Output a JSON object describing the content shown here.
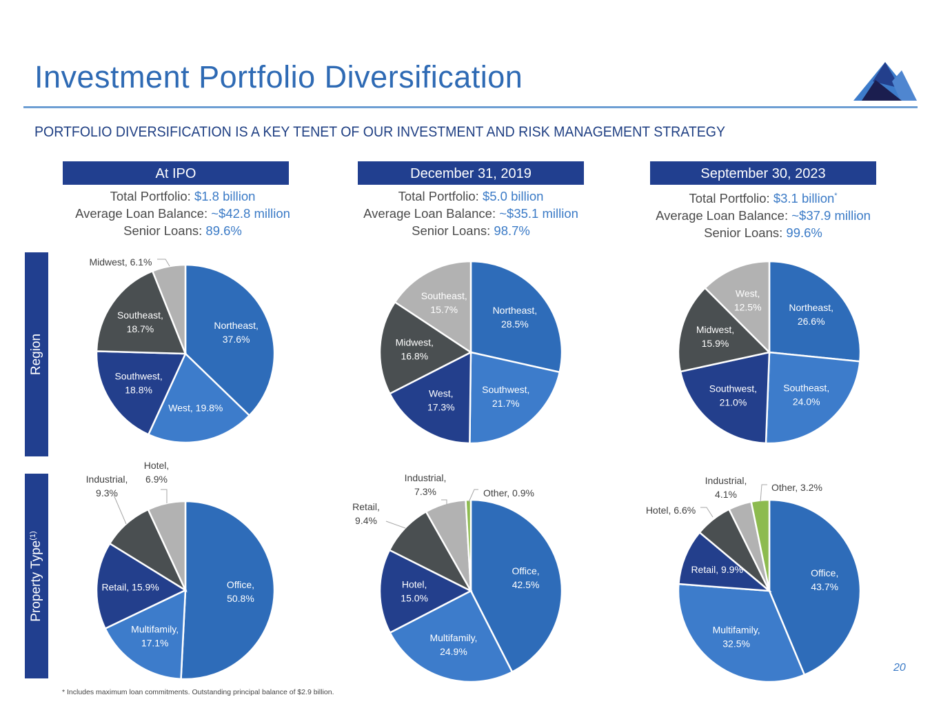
{
  "header": {
    "title": "Investment Portfolio Diversification",
    "subtitle": "PORTFOLIO DIVERSIFICATION IS A KEY TENET OF OUR INVESTMENT AND RISK MANAGEMENT STRATEGY",
    "logo_icon": "mountain-logo-icon"
  },
  "columns": [
    {
      "heading": "At IPO",
      "total_label": "Total Portfolio: ",
      "total_value": "$1.8 billion",
      "total_note": "",
      "avg_label": "Average Loan Balance: ",
      "avg_value": "~$42.8 million",
      "senior_label": "Senior Loans: ",
      "senior_value": "89.6%"
    },
    {
      "heading": "December 31, 2019",
      "total_label": "Total Portfolio: ",
      "total_value": "$5.0 billion",
      "total_note": "",
      "avg_label": "Average Loan Balance: ",
      "avg_value": "~$35.1 million",
      "senior_label": "Senior Loans: ",
      "senior_value": "98.7%"
    },
    {
      "heading": "September 30, 2023",
      "total_label": "Total Portfolio: ",
      "total_value": "$3.1 billion",
      "total_note": "*",
      "avg_label": "Average Loan Balance: ",
      "avg_value": "~$37.9 million",
      "senior_label": "Senior Loans: ",
      "senior_value": "99.6%"
    }
  ],
  "row_labels": {
    "region": "Region",
    "property": "Property Type",
    "property_note": "(1)"
  },
  "colors": {
    "blue": "#2e6cb9",
    "light_blue": "#3d7ccb",
    "navy": "#233f8c",
    "charcoal": "#4a4f51",
    "gray": "#b2b2b2",
    "green": "#8dbb4f",
    "accent_text": "#3a7ac6",
    "header_bar": "#213f8f"
  },
  "chart_data": [
    {
      "type": "pie",
      "title": "Region - At IPO",
      "slices": [
        {
          "label": "Northeast",
          "value": 37.6,
          "text": "Northeast,\n37.6%",
          "color": "blue"
        },
        {
          "label": "West",
          "value": 19.8,
          "text": "West, 19.8%",
          "color": "light_blue"
        },
        {
          "label": "Southwest",
          "value": 18.8,
          "text": "Southwest,\n18.8%",
          "color": "navy"
        },
        {
          "label": "Southeast",
          "value": 18.7,
          "text": "Southeast,\n18.7%",
          "color": "charcoal"
        },
        {
          "label": "Midwest",
          "value": 6.1,
          "text": "Midwest, 6.1%",
          "color": "gray",
          "outside": true
        }
      ]
    },
    {
      "type": "pie",
      "title": "Region - December 31, 2019",
      "slices": [
        {
          "label": "Northeast",
          "value": 28.5,
          "text": "Northeast,\n28.5%",
          "color": "blue"
        },
        {
          "label": "Southwest",
          "value": 21.7,
          "text": "Southwest,\n21.7%",
          "color": "light_blue"
        },
        {
          "label": "West",
          "value": 17.3,
          "text": "West,\n17.3%",
          "color": "navy"
        },
        {
          "label": "Midwest",
          "value": 16.8,
          "text": "Midwest,\n16.8%",
          "color": "charcoal"
        },
        {
          "label": "Southeast",
          "value": 15.7,
          "text": "Southeast,\n15.7%",
          "color": "gray"
        }
      ]
    },
    {
      "type": "pie",
      "title": "Region - September 30, 2023",
      "slices": [
        {
          "label": "Northeast",
          "value": 26.6,
          "text": "Northeast,\n26.6%",
          "color": "blue"
        },
        {
          "label": "Southeast",
          "value": 24.0,
          "text": "Southeast,\n24.0%",
          "color": "light_blue"
        },
        {
          "label": "Southwest",
          "value": 21.0,
          "text": "Southwest,\n21.0%",
          "color": "navy"
        },
        {
          "label": "Midwest",
          "value": 15.9,
          "text": "Midwest,\n15.9%",
          "color": "charcoal"
        },
        {
          "label": "West",
          "value": 12.5,
          "text": "West,\n12.5%",
          "color": "gray"
        }
      ]
    },
    {
      "type": "pie",
      "title": "Property Type - At IPO",
      "slices": [
        {
          "label": "Office",
          "value": 50.8,
          "text": "Office,\n50.8%",
          "color": "blue"
        },
        {
          "label": "Multifamily",
          "value": 17.1,
          "text": "Multifamily,\n17.1%",
          "color": "light_blue"
        },
        {
          "label": "Retail",
          "value": 15.9,
          "text": "Retail, 15.9%",
          "color": "navy"
        },
        {
          "label": "Industrial",
          "value": 9.3,
          "text": "Industrial,\n9.3%",
          "color": "charcoal",
          "outside": true
        },
        {
          "label": "Hotel",
          "value": 6.9,
          "text": "Hotel,\n6.9%",
          "color": "gray",
          "outside": true
        }
      ]
    },
    {
      "type": "pie",
      "title": "Property Type - December 31, 2019",
      "slices": [
        {
          "label": "Office",
          "value": 42.5,
          "text": "Office,\n42.5%",
          "color": "blue"
        },
        {
          "label": "Multifamily",
          "value": 24.9,
          "text": "Multifamily,\n24.9%",
          "color": "light_blue"
        },
        {
          "label": "Hotel",
          "value": 15.0,
          "text": "Hotel,\n15.0%",
          "color": "navy"
        },
        {
          "label": "Retail",
          "value": 9.4,
          "text": "Retail,\n9.4%",
          "color": "charcoal",
          "outside": true
        },
        {
          "label": "Industrial",
          "value": 7.3,
          "text": "Industrial,\n7.3%",
          "color": "gray",
          "outside": true
        },
        {
          "label": "Other",
          "value": 0.9,
          "text": "Other, 0.9%",
          "color": "green",
          "outside": true
        }
      ]
    },
    {
      "type": "pie",
      "title": "Property Type - September 30, 2023",
      "slices": [
        {
          "label": "Office",
          "value": 43.7,
          "text": "Office,\n43.7%",
          "color": "blue"
        },
        {
          "label": "Multifamily",
          "value": 32.5,
          "text": "Multifamily,\n32.5%",
          "color": "light_blue"
        },
        {
          "label": "Retail",
          "value": 9.9,
          "text": "Retail, 9.9%",
          "color": "navy"
        },
        {
          "label": "Hotel",
          "value": 6.6,
          "text": "Hotel, 6.6%",
          "color": "charcoal",
          "outside": true
        },
        {
          "label": "Industrial",
          "value": 4.1,
          "text": "Industrial,\n4.1%",
          "color": "gray",
          "outside": true
        },
        {
          "label": "Other",
          "value": 3.2,
          "text": "Other, 3.2%",
          "color": "green",
          "outside": true
        }
      ]
    }
  ],
  "footer": {
    "footnote": "* Includes maximum  loan commitments.  Outstanding principal balance of $2.9 billion.",
    "page_number": "20"
  }
}
